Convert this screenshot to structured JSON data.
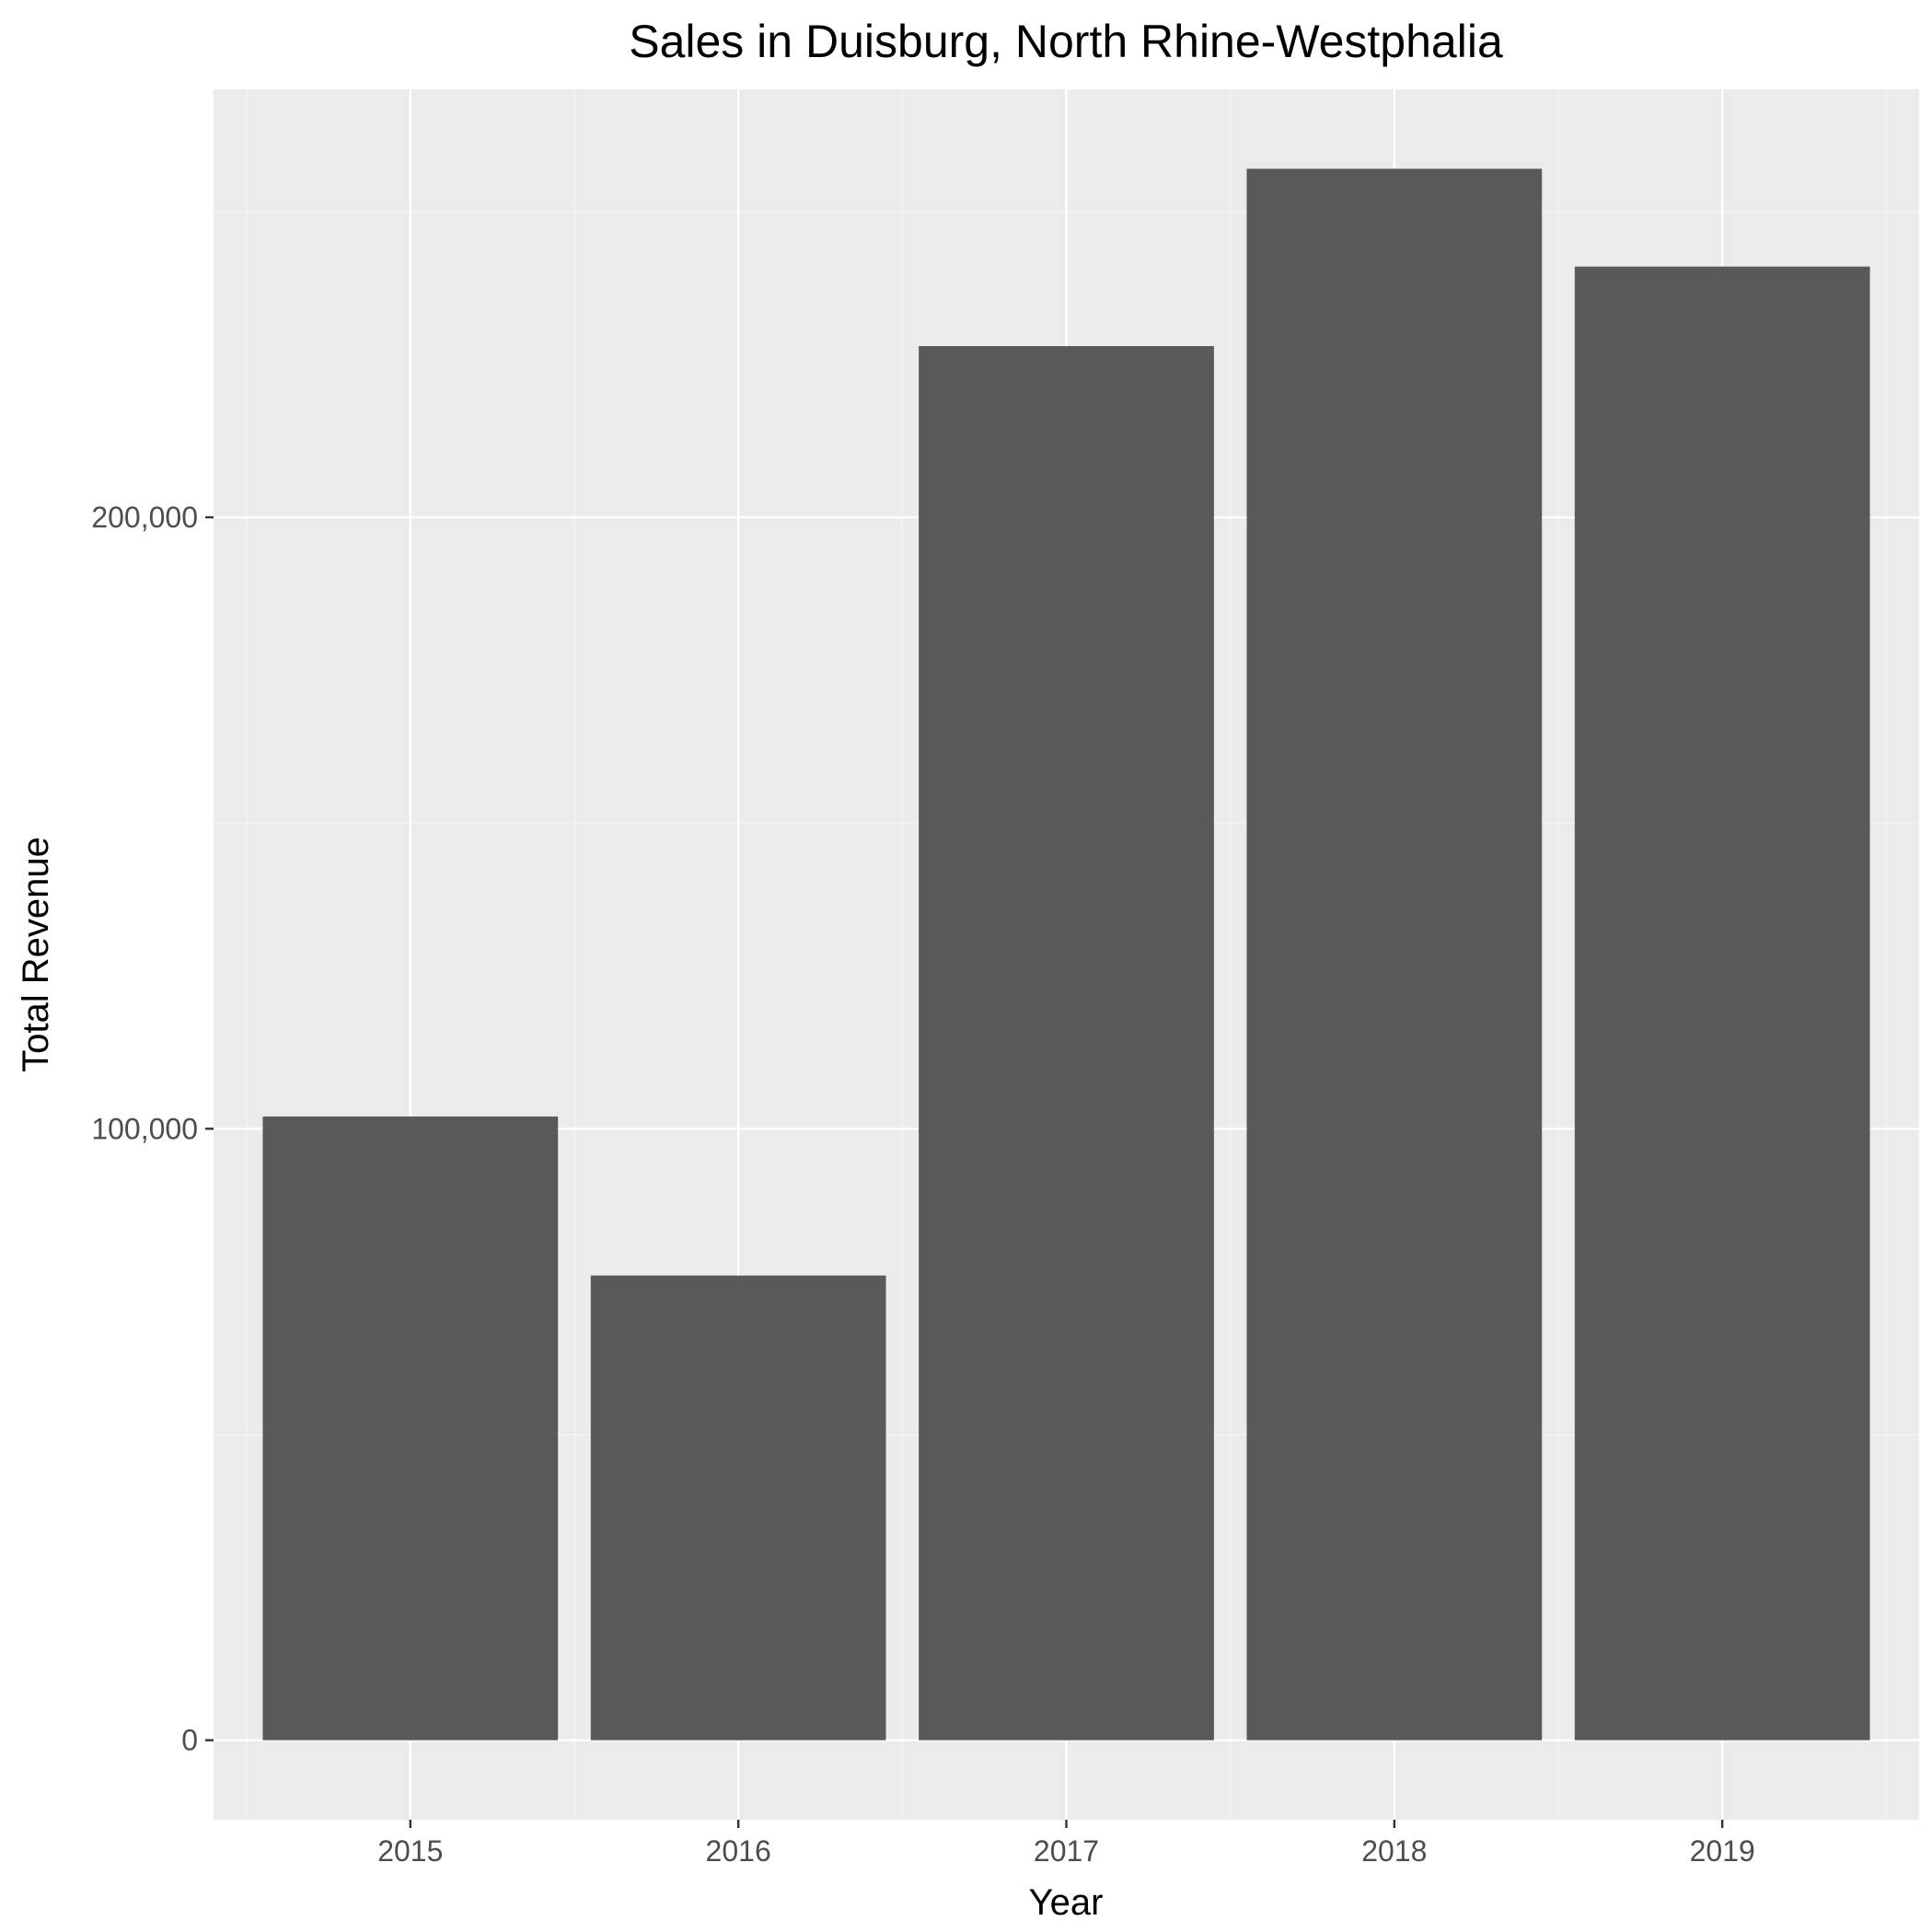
{
  "colors": {
    "panel_background": "#ebebeb",
    "grid_major": "#ffffff",
    "grid_minor": "#f5f5f5",
    "bar_fill": "#595959",
    "tick_text": "#4d4d4d",
    "tick_mark": "#333333"
  },
  "chart_data": {
    "type": "bar",
    "title": "Sales in Duisburg, North Rhine-Westphalia",
    "xlabel": "Year",
    "ylabel": "Total Revenue",
    "categories": [
      "2015",
      "2016",
      "2017",
      "2018",
      "2019"
    ],
    "values": [
      102000,
      76000,
      228000,
      257000,
      241000
    ],
    "ylim": [
      -13000,
      270000
    ],
    "yticks": [
      0,
      100000,
      200000
    ],
    "ytick_labels": [
      "0",
      "100,000",
      "200,000"
    ],
    "grid": true,
    "legend": "none"
  }
}
